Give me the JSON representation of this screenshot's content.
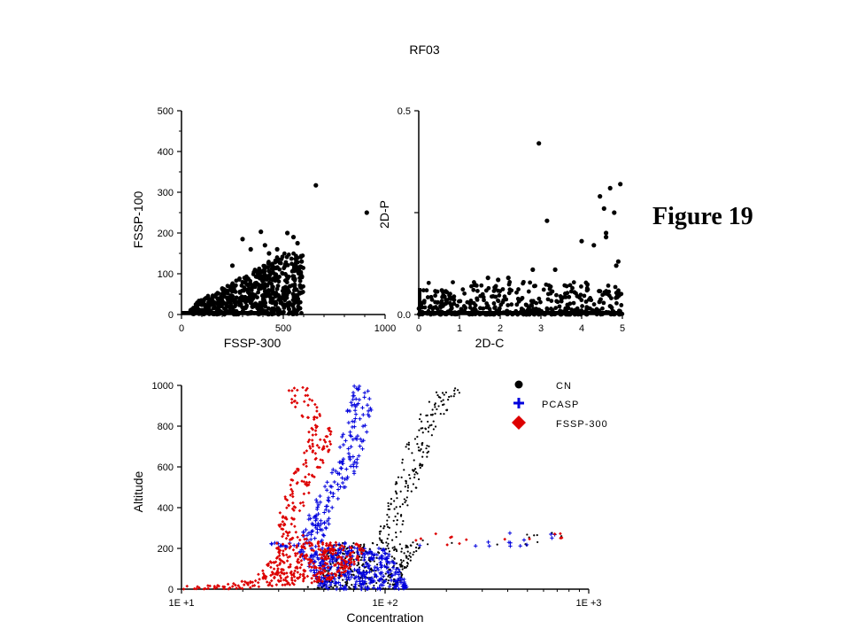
{
  "page": {
    "title": "RF03",
    "figure_label": "Figure 19"
  },
  "chart_data": [
    {
      "id": "fssp",
      "type": "scatter",
      "title": "",
      "xlabel": "FSSP-300",
      "ylabel": "FSSP-100",
      "xlim": [
        0,
        1000
      ],
      "ylim": [
        0,
        500
      ],
      "xticks": [
        0,
        500,
        1000
      ],
      "xtick_labels": [
        "0",
        "500",
        "1000"
      ],
      "yticks": [
        0,
        100,
        200,
        300,
        400,
        500
      ],
      "ytick_labels": [
        "0",
        "100",
        "200",
        "300",
        "400",
        "500"
      ],
      "series": [
        {
          "name": "RF03",
          "color": "#000000",
          "points": [
            [
              660,
              317
            ],
            [
              390,
              203
            ],
            [
              520,
              200
            ],
            [
              550,
              190
            ],
            [
              570,
              175
            ],
            [
              300,
              185
            ],
            [
              340,
              160
            ],
            [
              470,
              160
            ],
            [
              590,
              130
            ],
            [
              910,
              250
            ],
            [
              410,
              170
            ],
            [
              430,
              150
            ],
            [
              250,
              120
            ]
          ],
          "cluster": {
            "x": [
              40,
              600
            ],
            "y": [
              0,
              150
            ],
            "n": 650
          }
        }
      ]
    },
    {
      "id": "twod",
      "type": "scatter",
      "title": "",
      "xlabel": "2D-C",
      "ylabel": "2D-P",
      "xlim": [
        0,
        5
      ],
      "ylim": [
        0,
        0.5
      ],
      "xticks": [
        0,
        1,
        2,
        3,
        4,
        5
      ],
      "xtick_labels": [
        "0",
        "1",
        "2",
        "3",
        "4",
        "5"
      ],
      "yticks": [
        0,
        0.25,
        0.5
      ],
      "ytick_labels": [
        "0.0",
        "",
        "0.5"
      ],
      "series": [
        {
          "name": "RF03",
          "color": "#000000",
          "points": [
            [
              2.95,
              0.42
            ],
            [
              4.95,
              0.32
            ],
            [
              4.7,
              0.31
            ],
            [
              4.45,
              0.29
            ],
            [
              4.55,
              0.26
            ],
            [
              4.8,
              0.25
            ],
            [
              3.15,
              0.23
            ],
            [
              4.6,
              0.19
            ],
            [
              4.6,
              0.2
            ],
            [
              4.0,
              0.18
            ],
            [
              4.3,
              0.17
            ],
            [
              4.9,
              0.13
            ],
            [
              3.35,
              0.11
            ],
            [
              2.8,
              0.11
            ],
            [
              4.85,
              0.12
            ],
            [
              2.2,
              0.09
            ],
            [
              1.7,
              0.09
            ],
            [
              1.95,
              0.085
            ]
          ],
          "cluster": {
            "x": [
              0,
              5
            ],
            "y": [
              0,
              0.08
            ],
            "n": 420
          }
        }
      ]
    },
    {
      "id": "altitude",
      "type": "scatter",
      "title": "",
      "xlabel": "Concentration",
      "ylabel": "Altitude",
      "xscale": "log",
      "xlim": [
        10,
        1000
      ],
      "ylim": [
        0,
        1000
      ],
      "xticks": [
        10,
        100,
        1000
      ],
      "xtick_labels": [
        "1E +1",
        "1E +2",
        "1E +3"
      ],
      "yticks": [
        0,
        200,
        400,
        600,
        800,
        1000
      ],
      "ytick_labels": [
        "0",
        "200",
        "400",
        "600",
        "800",
        "1000"
      ],
      "legend_position": "top-right",
      "series": [
        {
          "name": "CN",
          "color": "#000000",
          "marker": "circle",
          "profile": [
            [
              1000,
              210
            ],
            [
              950,
              200
            ],
            [
              900,
              180
            ],
            [
              850,
              170
            ],
            [
              800,
              160
            ],
            [
              750,
              150
            ],
            [
              700,
              145
            ],
            [
              650,
              140
            ],
            [
              600,
              135
            ],
            [
              550,
              130
            ],
            [
              500,
              125
            ],
            [
              450,
              120
            ],
            [
              400,
              115
            ],
            [
              350,
              110
            ],
            [
              300,
              108
            ],
            [
              250,
              105
            ],
            [
              230,
              100
            ],
            [
              210,
              90
            ],
            [
              180,
              85
            ],
            [
              150,
              82
            ],
            [
              120,
              80
            ],
            [
              100,
              78
            ],
            [
              80,
              76
            ],
            [
              60,
              74
            ],
            [
              40,
              72
            ],
            [
              20,
              70
            ],
            [
              0,
              68
            ]
          ]
        },
        {
          "name": "PCASP",
          "color": "#0000dd",
          "marker": "plus",
          "profile": [
            [
              1000,
              80
            ],
            [
              950,
              78
            ],
            [
              900,
              76
            ],
            [
              850,
              74
            ],
            [
              800,
              72
            ],
            [
              750,
              70
            ],
            [
              700,
              68
            ],
            [
              650,
              66
            ],
            [
              600,
              64
            ],
            [
              550,
              60
            ],
            [
              500,
              56
            ],
            [
              450,
              52
            ],
            [
              400,
              50
            ],
            [
              350,
              48
            ],
            [
              300,
              46
            ],
            [
              250,
              44
            ],
            [
              220,
              42
            ],
            [
              200,
              60
            ],
            [
              150,
              65
            ],
            [
              100,
              70
            ],
            [
              50,
              75
            ],
            [
              0,
              80
            ]
          ]
        },
        {
          "name": "FSSP-300",
          "color": "#dd0000",
          "marker": "diamond",
          "profile": [
            [
              1000,
              36
            ],
            [
              950,
              38
            ],
            [
              900,
              40
            ],
            [
              850,
              45
            ],
            [
              800,
              47
            ],
            [
              750,
              48
            ],
            [
              700,
              47
            ],
            [
              650,
              45
            ],
            [
              600,
              42
            ],
            [
              550,
              40
            ],
            [
              500,
              38
            ],
            [
              450,
              37
            ],
            [
              400,
              36
            ],
            [
              350,
              34
            ],
            [
              300,
              33
            ],
            [
              250,
              36
            ],
            [
              220,
              46
            ],
            [
              200,
              48
            ],
            [
              150,
              46
            ],
            [
              100,
              42
            ],
            [
              60,
              38
            ],
            [
              40,
              33
            ],
            [
              25,
              25
            ],
            [
              15,
              18
            ],
            [
              10,
              14
            ]
          ]
        }
      ]
    }
  ]
}
